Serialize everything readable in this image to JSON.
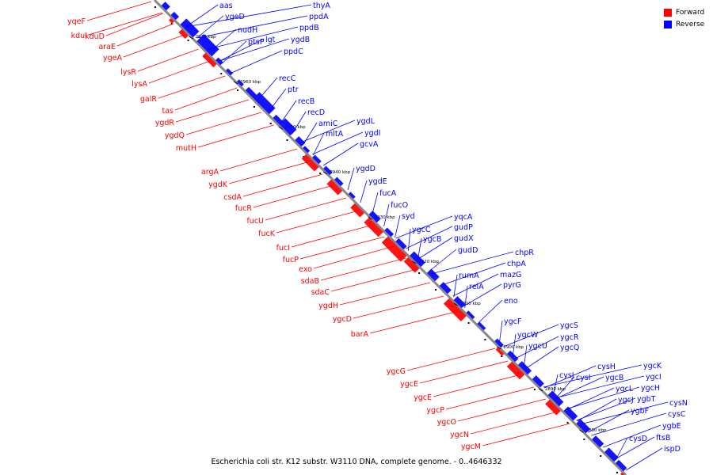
{
  "legend": {
    "forward_label": "Forward",
    "reverse_label": "Reverse",
    "forward_color": "#ff0000",
    "reverse_color": "#0000ff"
  },
  "caption": "Escherichia coli str. K12 substr. W3110 DNA, complete genome. - 0..4646332",
  "axis_color": "#888888",
  "ticks": [
    "2970 kbp",
    "2960 kbp",
    "2950 kbp",
    "2940 kbp",
    "2930 kbp",
    "2920 kbp",
    "2910 kbp",
    "2900 kbp",
    "2890 kbp",
    "2880 kbp"
  ],
  "forward_genes": [
    "yqeF",
    "kduI",
    "kduD",
    "araE",
    "ygeA",
    "lysR",
    "lysA",
    "galR",
    "tas",
    "ygdR",
    "ygdQ",
    "mutH",
    "argA",
    "ygdK",
    "csdA",
    "fucR",
    "fucU",
    "fucK",
    "fucI",
    "fucP",
    "exo",
    "sdaB",
    "sdaC",
    "ygdH",
    "ygcD",
    "barA",
    "ygcG",
    "ygcE",
    "ygcE",
    "ygcP",
    "ygcO",
    "ygcN",
    "ygcM"
  ],
  "reverse_genes": [
    "aas",
    "ygeD",
    "thyA",
    "ppdA",
    "nudH",
    "ppdB",
    "ptsP",
    "lgt",
    "ygdB",
    "ppdC",
    "recC",
    "ptr",
    "recB",
    "recD",
    "amiC",
    "mltA",
    "ygdL",
    "ygdI",
    "gcvA",
    "ygdD",
    "ygdE",
    "fucA",
    "fucO",
    "syd",
    "yqcA",
    "ygcC",
    "gudP",
    "ygcB",
    "gudX",
    "gudD",
    "chpR",
    "chpA",
    "mazG",
    "rumA",
    "relA",
    "pyrG",
    "eno",
    "ygcF",
    "ygcS",
    "ygcW",
    "ygcR",
    "ygcU",
    "ygcQ",
    "cysH",
    "ygcK",
    "cysJ",
    "cysI",
    "ygcB",
    "ygcI",
    "ygcL",
    "ygcH",
    "ygcJ",
    "ygbT",
    "ygbF",
    "cysN",
    "cysC",
    "ygbE",
    "cysD",
    "ftsB",
    "ispD"
  ]
}
